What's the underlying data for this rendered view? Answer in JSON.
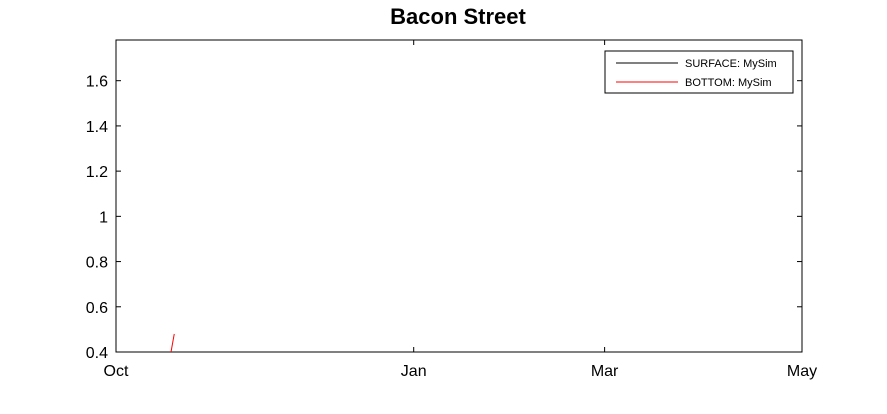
{
  "chart_data": {
    "type": "line",
    "title": "Bacon Street",
    "xlabel": "",
    "ylabel": "",
    "xlim": [
      "2012-10-01",
      "2013-05-01"
    ],
    "ylim": [
      0.4,
      1.78
    ],
    "x_ticks": [
      {
        "date": "2012-10-01",
        "label": "Oct"
      },
      {
        "date": "2013-01-01",
        "label": "Jan"
      },
      {
        "date": "2013-03-01",
        "label": "Mar"
      },
      {
        "date": "2013-05-01",
        "label": "May"
      }
    ],
    "y_ticks": [
      {
        "value": 0.4,
        "label": "0.4"
      },
      {
        "value": 0.6,
        "label": "0.6"
      },
      {
        "value": 0.8,
        "label": "0.8"
      },
      {
        "value": 1.0,
        "label": "1"
      },
      {
        "value": 1.2,
        "label": "1.2"
      },
      {
        "value": 1.4,
        "label": "1.4"
      },
      {
        "value": 1.6,
        "label": "1.6"
      }
    ],
    "grid": false,
    "legend_position": "top-right",
    "series": [
      {
        "name": "SURFACE: MySim",
        "color": "#000000",
        "points": []
      },
      {
        "name": "BOTTOM: MySim",
        "color": "#ff0000",
        "points": [
          {
            "x": "2012-10-18",
            "y": 0.4
          },
          {
            "x": "2012-10-19",
            "y": 0.48
          }
        ]
      }
    ]
  }
}
